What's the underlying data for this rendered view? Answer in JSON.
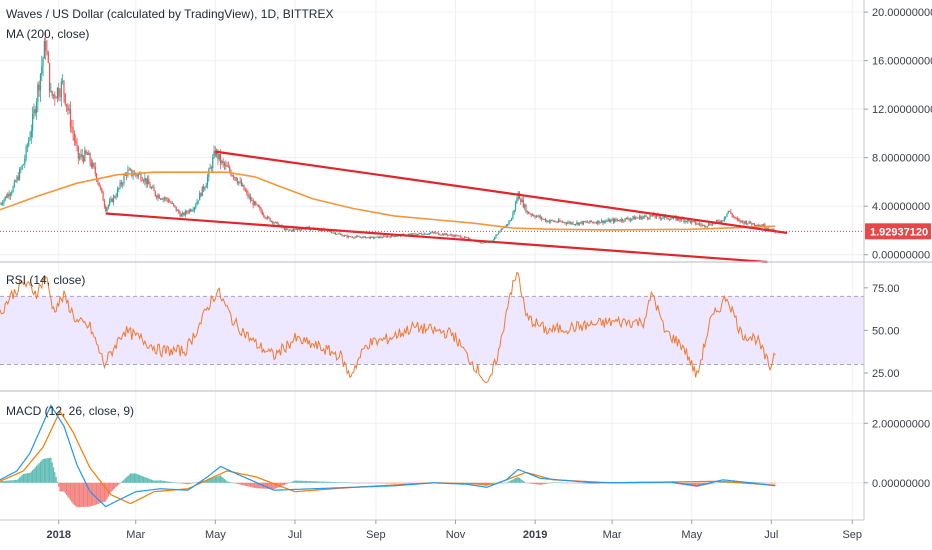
{
  "header": {
    "title": "Waves / US Dollar (calculated by TradingView), 1D, BITTREX",
    "ma_label": "MA (200, close)",
    "rsi_label": "RSI (14, close)",
    "macd_label": "MACD (12, 26, close, 9)"
  },
  "colors": {
    "candle_up": "#26a69a",
    "candle_down": "#ef5350",
    "ma": "#f7953a",
    "trendline": "#e3242b",
    "rsi_line": "#f37a2f",
    "rsi_band": "#ede7ff",
    "macd_line": "#2196f3",
    "signal_line": "#f57c00",
    "price_tag": "#e8474a"
  },
  "chart_data": [
    {
      "type": "candlestick",
      "title": "Waves / US Dollar (calculated by TradingView), 1D, BITTREX",
      "x_axis": {
        "type": "date",
        "range": [
          "2017-11-17",
          "2019-09-10"
        ],
        "tick_labels": [
          "2018",
          "Mar",
          "May",
          "Jul",
          "Sep",
          "Nov",
          "2019",
          "Mar",
          "May",
          "Jul",
          "Sep"
        ]
      },
      "y_axis": {
        "range": [
          -0.6,
          21.0
        ],
        "side": "right",
        "tick_labels": [
          "20.00000000",
          "16.00000000",
          "12.00000000",
          "8.00000000",
          "4.00000000",
          "0.00000000"
        ]
      },
      "grid": true,
      "last_price": "1.92937120",
      "price_anchors": [
        [
          "2017-11-17",
          4.2
        ],
        [
          "2017-11-27",
          5.5
        ],
        [
          "2017-12-05",
          7.5
        ],
        [
          "2017-12-12",
          11.0
        ],
        [
          "2017-12-18",
          15.0
        ],
        [
          "2017-12-22",
          17.5
        ],
        [
          "2017-12-26",
          13.0
        ],
        [
          "2018-01-04",
          14.0
        ],
        [
          "2018-01-10",
          11.0
        ],
        [
          "2018-01-16",
          8.0
        ],
        [
          "2018-01-23",
          8.2
        ],
        [
          "2018-01-30",
          6.5
        ],
        [
          "2018-02-06",
          3.8
        ],
        [
          "2018-02-14",
          5.0
        ],
        [
          "2018-02-22",
          6.8
        ],
        [
          "2018-03-06",
          6.5
        ],
        [
          "2018-03-16",
          5.0
        ],
        [
          "2018-03-26",
          4.5
        ],
        [
          "2018-04-05",
          3.2
        ],
        [
          "2018-04-15",
          4.0
        ],
        [
          "2018-04-24",
          6.0
        ],
        [
          "2018-05-01",
          8.5
        ],
        [
          "2018-05-06",
          7.5
        ],
        [
          "2018-05-16",
          6.5
        ],
        [
          "2018-05-28",
          4.5
        ],
        [
          "2018-06-10",
          3.0
        ],
        [
          "2018-06-25",
          2.0
        ],
        [
          "2018-07-10",
          2.2
        ],
        [
          "2018-07-25",
          2.0
        ],
        [
          "2018-08-10",
          1.5
        ],
        [
          "2018-08-30",
          1.4
        ],
        [
          "2018-09-20",
          1.6
        ],
        [
          "2018-10-15",
          1.8
        ],
        [
          "2018-11-05",
          1.5
        ],
        [
          "2018-11-20",
          1.0
        ],
        [
          "2018-11-28",
          1.1
        ],
        [
          "2018-12-08",
          2.2
        ],
        [
          "2018-12-14",
          3.0
        ],
        [
          "2018-12-19",
          5.0
        ],
        [
          "2018-12-26",
          3.5
        ],
        [
          "2019-01-10",
          2.8
        ],
        [
          "2019-02-01",
          2.6
        ],
        [
          "2019-03-01",
          2.8
        ],
        [
          "2019-04-01",
          3.2
        ],
        [
          "2019-04-24",
          2.9
        ],
        [
          "2019-05-10",
          2.4
        ],
        [
          "2019-05-24",
          2.8
        ],
        [
          "2019-05-29",
          3.6
        ],
        [
          "2019-06-05",
          2.8
        ],
        [
          "2019-06-25",
          2.4
        ],
        [
          "2019-07-04",
          1.93
        ]
      ],
      "ma200": [
        [
          "2017-11-17",
          3.7
        ],
        [
          "2017-12-15",
          4.8
        ],
        [
          "2018-01-15",
          5.9
        ],
        [
          "2018-02-15",
          6.6
        ],
        [
          "2018-03-15",
          6.8
        ],
        [
          "2018-04-15",
          6.8
        ],
        [
          "2018-05-10",
          6.8
        ],
        [
          "2018-06-01",
          6.4
        ],
        [
          "2018-06-20",
          5.6
        ],
        [
          "2018-07-15",
          4.6
        ],
        [
          "2018-08-15",
          3.8
        ],
        [
          "2018-09-15",
          3.2
        ],
        [
          "2018-10-15",
          2.9
        ],
        [
          "2018-11-15",
          2.6
        ],
        [
          "2018-12-15",
          2.2
        ],
        [
          "2019-01-15",
          2.1
        ],
        [
          "2019-03-01",
          2.05
        ],
        [
          "2019-05-01",
          2.1
        ],
        [
          "2019-07-04",
          2.35
        ]
      ],
      "trendlines": [
        {
          "from": [
            "2018-05-01",
            8.5
          ],
          "to": [
            "2019-07-13",
            1.8
          ]
        },
        {
          "from": [
            "2018-02-06",
            3.4
          ],
          "to": [
            "2019-06-28",
            -0.6
          ]
        }
      ],
      "price_line": 1.9293712
    },
    {
      "type": "line",
      "title": "RSI (14, close)",
      "y_axis": {
        "range": [
          15,
          89
        ],
        "tick_labels": [
          "75.00",
          "50.00",
          "25.00"
        ]
      },
      "band": [
        30,
        70
      ],
      "anchors": [
        [
          "2017-11-17",
          60
        ],
        [
          "2017-11-25",
          70
        ],
        [
          "2017-12-05",
          78
        ],
        [
          "2017-12-15",
          72
        ],
        [
          "2017-12-22",
          82
        ],
        [
          "2017-12-28",
          62
        ],
        [
          "2018-01-05",
          70
        ],
        [
          "2018-01-15",
          55
        ],
        [
          "2018-01-25",
          52
        ],
        [
          "2018-02-05",
          30
        ],
        [
          "2018-02-20",
          50
        ],
        [
          "2018-03-05",
          45
        ],
        [
          "2018-03-20",
          38
        ],
        [
          "2018-04-08",
          38
        ],
        [
          "2018-04-20",
          55
        ],
        [
          "2018-04-28",
          68
        ],
        [
          "2018-05-03",
          73
        ],
        [
          "2018-05-15",
          55
        ],
        [
          "2018-06-01",
          42
        ],
        [
          "2018-06-15",
          35
        ],
        [
          "2018-07-01",
          45
        ],
        [
          "2018-07-20",
          40
        ],
        [
          "2018-08-05",
          35
        ],
        [
          "2018-08-12",
          23
        ],
        [
          "2018-08-25",
          42
        ],
        [
          "2018-09-10",
          45
        ],
        [
          "2018-09-30",
          52
        ],
        [
          "2018-10-15",
          50
        ],
        [
          "2018-10-30",
          48
        ],
        [
          "2018-11-10",
          35
        ],
        [
          "2018-11-20",
          25
        ],
        [
          "2018-11-26",
          17
        ],
        [
          "2018-12-05",
          40
        ],
        [
          "2018-12-12",
          70
        ],
        [
          "2018-12-19",
          84
        ],
        [
          "2018-12-25",
          58
        ],
        [
          "2019-01-10",
          50
        ],
        [
          "2019-02-01",
          52
        ],
        [
          "2019-03-01",
          55
        ],
        [
          "2019-03-25",
          55
        ],
        [
          "2019-04-01",
          72
        ],
        [
          "2019-04-10",
          50
        ],
        [
          "2019-04-25",
          40
        ],
        [
          "2019-05-05",
          23
        ],
        [
          "2019-05-15",
          55
        ],
        [
          "2019-05-28",
          70
        ],
        [
          "2019-06-08",
          48
        ],
        [
          "2019-06-20",
          45
        ],
        [
          "2019-06-30",
          28
        ],
        [
          "2019-07-04",
          38
        ]
      ]
    },
    {
      "type": "line",
      "title": "MACD (12, 26, close, 9)",
      "y_axis": {
        "range": [
          -1.25,
          3.05
        ],
        "tick_labels": [
          "2.00000000",
          "0.00000000"
        ]
      },
      "series": [
        {
          "role": "macd",
          "anchors": [
            [
              "2017-11-17",
              0.1
            ],
            [
              "2017-11-30",
              0.4
            ],
            [
              "2017-12-10",
              1.0
            ],
            [
              "2017-12-20",
              2.0
            ],
            [
              "2017-12-26",
              2.6
            ],
            [
              "2018-01-05",
              1.9
            ],
            [
              "2018-01-15",
              0.6
            ],
            [
              "2018-01-25",
              -0.3
            ],
            [
              "2018-02-06",
              -0.8
            ],
            [
              "2018-02-15",
              -0.6
            ],
            [
              "2018-03-01",
              -0.3
            ],
            [
              "2018-03-20",
              -0.2
            ],
            [
              "2018-04-10",
              -0.25
            ],
            [
              "2018-04-25",
              0.2
            ],
            [
              "2018-05-05",
              0.55
            ],
            [
              "2018-05-20",
              0.25
            ],
            [
              "2018-06-15",
              -0.25
            ],
            [
              "2018-07-15",
              -0.2
            ],
            [
              "2018-08-15",
              -0.15
            ],
            [
              "2018-09-15",
              -0.1
            ],
            [
              "2018-10-15",
              0.0
            ],
            [
              "2018-11-10",
              -0.05
            ],
            [
              "2018-11-25",
              -0.15
            ],
            [
              "2018-12-10",
              0.1
            ],
            [
              "2018-12-19",
              0.45
            ],
            [
              "2019-01-05",
              0.15
            ],
            [
              "2019-02-15",
              0.0
            ],
            [
              "2019-04-15",
              0.02
            ],
            [
              "2019-05-05",
              -0.1
            ],
            [
              "2019-05-25",
              0.1
            ],
            [
              "2019-06-15",
              0.0
            ],
            [
              "2019-07-04",
              -0.1
            ]
          ]
        },
        {
          "role": "signal",
          "anchors": [
            [
              "2017-11-17",
              0.05
            ],
            [
              "2017-12-05",
              0.4
            ],
            [
              "2017-12-20",
              1.2
            ],
            [
              "2018-01-02",
              2.4
            ],
            [
              "2018-01-12",
              1.7
            ],
            [
              "2018-01-25",
              0.5
            ],
            [
              "2018-02-10",
              -0.4
            ],
            [
              "2018-02-25",
              -0.7
            ],
            [
              "2018-03-15",
              -0.3
            ],
            [
              "2018-04-10",
              -0.2
            ],
            [
              "2018-05-10",
              0.4
            ],
            [
              "2018-06-01",
              0.2
            ],
            [
              "2018-07-01",
              -0.3
            ],
            [
              "2018-08-15",
              -0.15
            ],
            [
              "2018-10-15",
              0.0
            ],
            [
              "2018-12-01",
              -0.05
            ],
            [
              "2018-12-25",
              0.35
            ],
            [
              "2019-01-15",
              0.1
            ],
            [
              "2019-03-01",
              0.0
            ],
            [
              "2019-05-20",
              0.05
            ],
            [
              "2019-07-04",
              -0.08
            ]
          ]
        }
      ]
    }
  ]
}
